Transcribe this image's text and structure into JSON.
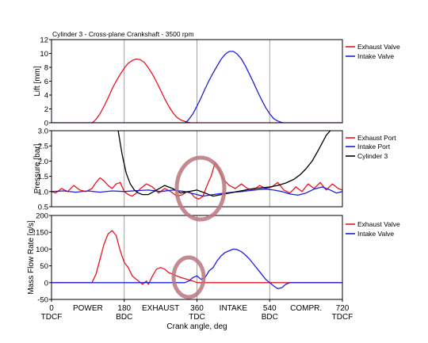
{
  "chart_data": [
    {
      "type": "line",
      "title": "Cylinder 3 - Cross-plane Crankshaft - 3500 rpm",
      "ylabel": "Lift [mm]",
      "ylim": [
        0,
        12
      ],
      "yticks": [
        "0",
        "2",
        "4",
        "6",
        "8",
        "10",
        "12"
      ],
      "grid": true,
      "legend": "right",
      "series": [
        {
          "name": "Exhaust Valve",
          "color": "#e8141e",
          "x": [
            0,
            100,
            105,
            110,
            120,
            130,
            140,
            150,
            160,
            170,
            180,
            190,
            200,
            210,
            220,
            230,
            240,
            250,
            260,
            270,
            280,
            290,
            300,
            310,
            320,
            330,
            340,
            345,
            350,
            720
          ],
          "y": [
            0,
            0,
            0.2,
            0.5,
            1.3,
            2.4,
            3.6,
            4.9,
            6.0,
            7.0,
            7.9,
            8.6,
            9.0,
            9.2,
            9.1,
            8.7,
            7.9,
            7.0,
            5.9,
            4.7,
            3.5,
            2.4,
            1.5,
            0.8,
            0.4,
            0.2,
            0.05,
            0,
            0,
            0
          ]
        },
        {
          "name": "Intake Valve",
          "color": "#1d1ee0",
          "x": [
            0,
            330,
            335,
            340,
            350,
            360,
            370,
            380,
            390,
            400,
            410,
            420,
            430,
            440,
            450,
            460,
            470,
            480,
            490,
            500,
            510,
            520,
            530,
            540,
            550,
            560,
            570,
            575,
            580,
            720
          ],
          "y": [
            0,
            0,
            0.2,
            0.5,
            1.3,
            2.4,
            3.6,
            4.9,
            6.1,
            7.2,
            8.2,
            9.2,
            9.9,
            10.3,
            10.3,
            9.9,
            9.2,
            8.2,
            7.0,
            5.8,
            4.5,
            3.3,
            2.2,
            1.3,
            0.6,
            0.25,
            0.05,
            0,
            0,
            0
          ]
        }
      ]
    },
    {
      "type": "line",
      "ylabel": "Pressure [bar]",
      "ylim": [
        0.5,
        3.0
      ],
      "yticks": [
        "0.5",
        "1.0",
        "1.5",
        "2.0",
        "2.5",
        "3.0"
      ],
      "grid": true,
      "legend": "right",
      "series": [
        {
          "name": "Exhaust Port",
          "color": "#e8141e",
          "x": [
            0,
            10,
            25,
            40,
            55,
            70,
            85,
            100,
            110,
            120,
            130,
            140,
            150,
            160,
            170,
            180,
            190,
            200,
            210,
            220,
            235,
            250,
            265,
            280,
            295,
            310,
            325,
            335,
            345,
            355,
            365,
            375,
            385,
            395,
            405,
            415,
            425,
            440,
            455,
            470,
            485,
            500,
            515,
            530,
            545,
            560,
            575,
            590,
            605,
            620,
            635,
            650,
            665,
            680,
            695,
            710,
            720
          ],
          "y": [
            1.0,
            0.95,
            1.1,
            1.0,
            1.2,
            1.05,
            1.0,
            1.1,
            1.3,
            1.45,
            1.35,
            1.2,
            1.1,
            1.25,
            1.3,
            1.0,
            0.9,
            0.85,
            0.95,
            1.1,
            1.25,
            1.15,
            0.95,
            1.1,
            1.0,
            0.85,
            0.9,
            1.0,
            0.95,
            0.8,
            0.75,
            0.85,
            1.2,
            1.5,
            1.95,
            1.7,
            1.4,
            1.2,
            1.1,
            1.25,
            1.1,
            1.05,
            1.2,
            1.1,
            1.15,
            1.3,
            1.05,
            0.95,
            1.15,
            1.0,
            1.25,
            1.1,
            1.3,
            1.05,
            1.25,
            1.1,
            1.05
          ]
        },
        {
          "name": "Intake Port",
          "color": "#1d1ee0",
          "x": [
            0,
            30,
            60,
            90,
            120,
            150,
            180,
            210,
            240,
            270,
            300,
            330,
            345,
            360,
            375,
            390,
            410,
            430,
            450,
            470,
            490,
            510,
            530,
            550,
            570,
            590,
            610,
            630,
            650,
            670,
            690,
            705,
            720
          ],
          "y": [
            1.0,
            1.02,
            0.98,
            1.02,
            0.98,
            1.02,
            1.0,
            1.03,
            1.05,
            1.0,
            1.05,
            1.0,
            0.95,
            0.9,
            0.85,
            0.88,
            0.92,
            0.95,
            0.98,
            1.0,
            1.03,
            1.06,
            1.08,
            1.05,
            1.0,
            0.92,
            0.88,
            0.95,
            1.08,
            1.15,
            1.05,
            0.95,
            1.0
          ]
        },
        {
          "name": "Cylinder 3",
          "color": "#000000",
          "x": [
            165,
            175,
            185,
            195,
            205,
            215,
            225,
            240,
            260,
            280,
            300,
            320,
            340,
            360,
            380,
            400,
            420,
            440,
            460,
            480,
            500,
            520,
            540,
            560,
            580,
            600,
            615,
            630,
            645,
            660,
            670,
            680,
            690
          ],
          "y": [
            3.0,
            2.2,
            1.6,
            1.25,
            1.05,
            0.95,
            0.9,
            0.9,
            1.05,
            1.2,
            1.1,
            0.95,
            1.0,
            1.05,
            0.95,
            0.85,
            0.9,
            0.95,
            1.0,
            1.05,
            1.1,
            1.12,
            1.15,
            1.2,
            1.28,
            1.4,
            1.55,
            1.75,
            2.0,
            2.35,
            2.6,
            2.85,
            3.0
          ]
        }
      ]
    },
    {
      "type": "line",
      "ylabel": "Mass Flow Rate [g/s]",
      "xlabel": "Crank angle, deg",
      "ylim": [
        -50,
        200
      ],
      "yticks": [
        "-50",
        "0",
        "50",
        "100",
        "150",
        "200"
      ],
      "xlim": [
        0,
        720
      ],
      "xticks": [
        "0",
        "180",
        "360",
        "540",
        "720"
      ],
      "x_tick_sublabels": [
        "TDCF",
        "BDC",
        "TDC",
        "BDC",
        "TDCF"
      ],
      "stroke_labels": [
        "POWER",
        "EXHAUST",
        "INTAKE",
        "COMPR."
      ],
      "grid": true,
      "legend": "right",
      "series": [
        {
          "name": "Exhaust Valve",
          "color": "#e8141e",
          "x": [
            0,
            100,
            110,
            120,
            130,
            140,
            150,
            160,
            170,
            180,
            190,
            200,
            210,
            220,
            225,
            230,
            235,
            240,
            250,
            260,
            270,
            280,
            290,
            300,
            310,
            320,
            330,
            340,
            350,
            360,
            720
          ],
          "y": [
            0,
            0,
            25,
            70,
            115,
            145,
            155,
            140,
            95,
            60,
            45,
            20,
            10,
            0,
            -5,
            0,
            5,
            -5,
            20,
            40,
            45,
            40,
            30,
            25,
            20,
            15,
            12,
            8,
            5,
            0,
            0
          ]
        },
        {
          "name": "Intake Valve",
          "color": "#1d1ee0",
          "x": [
            0,
            330,
            340,
            350,
            360,
            370,
            380,
            390,
            400,
            410,
            420,
            430,
            440,
            450,
            460,
            470,
            480,
            490,
            500,
            510,
            520,
            530,
            540,
            550,
            560,
            570,
            580,
            590,
            720
          ],
          "y": [
            0,
            0,
            5,
            15,
            20,
            10,
            15,
            35,
            45,
            65,
            80,
            90,
            95,
            100,
            98,
            92,
            82,
            70,
            55,
            40,
            25,
            10,
            0,
            -10,
            -18,
            -15,
            -5,
            0,
            0
          ]
        }
      ]
    }
  ]
}
